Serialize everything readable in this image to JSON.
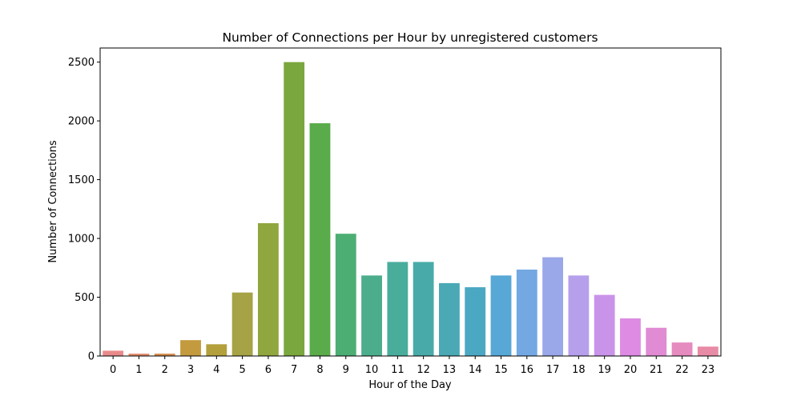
{
  "chart_data": {
    "type": "bar",
    "title": "Number of Connections per Hour by unregistered customers",
    "xlabel": "Hour of the Day",
    "ylabel": "Number of Connections",
    "ylim": [
      0,
      2620
    ],
    "yticks": [
      0,
      500,
      1000,
      1500,
      2000,
      2500
    ],
    "grid": false,
    "categories": [
      "0",
      "1",
      "2",
      "3",
      "4",
      "5",
      "6",
      "7",
      "8",
      "9",
      "10",
      "11",
      "12",
      "13",
      "14",
      "15",
      "16",
      "17",
      "18",
      "19",
      "20",
      "21",
      "22",
      "23"
    ],
    "values": [
      45,
      20,
      20,
      135,
      100,
      540,
      1130,
      2500,
      1980,
      1040,
      685,
      800,
      800,
      620,
      585,
      685,
      735,
      840,
      685,
      520,
      320,
      240,
      115,
      80
    ],
    "colors": [
      "#e98a8a",
      "#e28c6b",
      "#d48c4c",
      "#c49a3f",
      "#b3a03c",
      "#a6a246",
      "#90a63e",
      "#7aa73e",
      "#5aab4a",
      "#4cae73",
      "#4cad8d",
      "#49ad9c",
      "#48aba9",
      "#4aa9b5",
      "#4ba8c3",
      "#57a8d6",
      "#73a8e3",
      "#9aa7e8",
      "#b6a0ec",
      "#ca93ea",
      "#dd8be3",
      "#e08bd3",
      "#e58bbf",
      "#e88ba6"
    ]
  }
}
